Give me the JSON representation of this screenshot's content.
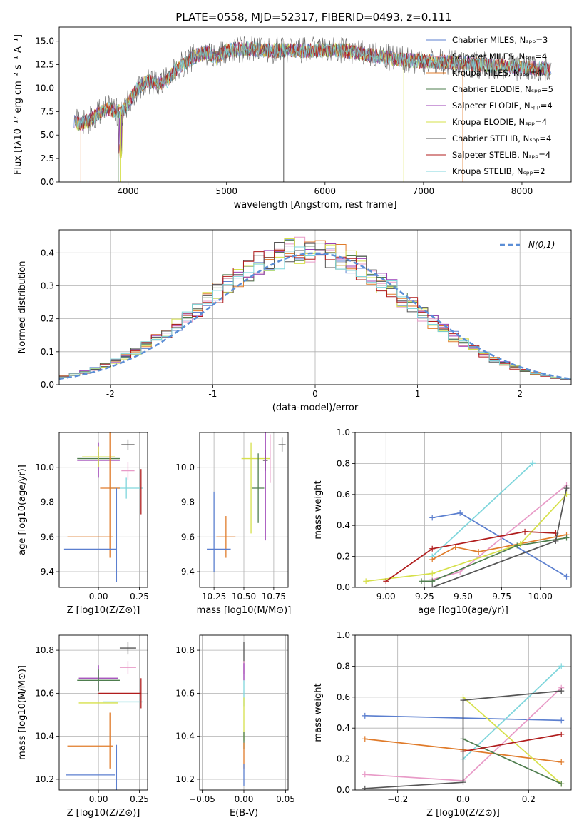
{
  "figure": {
    "title": "PLATE=0558, MJD=52317, FIBERID=0493, z=0.111"
  },
  "chart_data": [
    {
      "id": "spectrum",
      "type": "line",
      "xlabel": "wavelength [Angstrom, rest frame]",
      "ylabel": "Flux [fλ10⁻¹⁷ erg cm⁻² s⁻¹ A⁻¹]",
      "xlim": [
        3300,
        8500
      ],
      "ylim": [
        0,
        16.5
      ],
      "xticks": [
        4000,
        5000,
        6000,
        7000,
        8000
      ],
      "yticks": [
        0.0,
        2.5,
        5.0,
        7.5,
        10.0,
        12.5,
        15.0
      ],
      "ytick_labels": [
        "0.0",
        "2.5",
        "5.0",
        "7.5",
        "10.0",
        "12.5",
        "15.0"
      ],
      "grid": false,
      "legend_position": "top-right",
      "x_range_data": [
        3450,
        8300
      ],
      "series": [
        {
          "name": "Chabrier MILES, Nₛₚₚ=3",
          "color": "#5b7fcf"
        },
        {
          "name": "Salpeter MILES, Nₛₚₚ=4",
          "color": "#e89ac7"
        },
        {
          "name": "Kroupa MILES, Nₛₚₚ=4",
          "color": "#e07b2a"
        },
        {
          "name": "Chabrier ELODIE, Nₛₚₚ=5",
          "color": "#4e7d4e"
        },
        {
          "name": "Salpeter ELODIE, Nₛₚₚ=4",
          "color": "#9b3fb5"
        },
        {
          "name": "Kroupa ELODIE, Nₛₚₚ=4",
          "color": "#d6e04a"
        },
        {
          "name": "Chabrier STELIB, Nₛₚₚ=4",
          "color": "#555555"
        },
        {
          "name": "Salpeter STELIB, Nₛₚₚ=4",
          "color": "#b01c1c"
        },
        {
          "name": "Kroupa STELIB, Nₛₚₚ=2",
          "color": "#7fd6dc"
        }
      ],
      "envelope": {
        "x": [
          3450,
          3500,
          3600,
          3700,
          3800,
          3900,
          3950,
          4000,
          4100,
          4200,
          4300,
          4400,
          4500,
          4600,
          4700,
          4800,
          4900,
          5000,
          5200,
          5400,
          5600,
          5800,
          6000,
          6200,
          6400,
          6600,
          6800,
          7000,
          7200,
          7400,
          7600,
          7800,
          8000,
          8300
        ],
        "y": [
          6.5,
          6.2,
          6.5,
          7.3,
          7.8,
          7.5,
          7.5,
          8.5,
          10.0,
          10.8,
          10.5,
          10.8,
          12.2,
          12.8,
          13.5,
          13.8,
          13.2,
          14.0,
          14.2,
          14.0,
          14.0,
          14.0,
          14.1,
          14.0,
          13.6,
          13.3,
          13.0,
          12.9,
          12.8,
          12.6,
          12.5,
          12.4,
          12.2,
          12.0
        ]
      }
    },
    {
      "id": "residuals",
      "type": "histogram",
      "xlabel": "(data-model)/error",
      "ylabel": "Normed distribution",
      "xlim": [
        -2.5,
        2.5
      ],
      "ylim": [
        0,
        0.47
      ],
      "xticks": [
        -2,
        -1,
        0,
        1,
        2
      ],
      "yticks": [
        0.0,
        0.1,
        0.2,
        0.3,
        0.4
      ],
      "ytick_labels": [
        "0.0",
        "0.1",
        "0.2",
        "0.3",
        "0.4"
      ],
      "grid": true,
      "legend_position": "top-right",
      "reference_curve": {
        "name": "N(0,1)",
        "mean": 0,
        "sigma": 1,
        "color": "#5b8ed6"
      },
      "bin_width": 0.1,
      "bin_start": -2.5
    },
    {
      "id": "age_vs_z",
      "type": "errorbar",
      "xlabel": "Z [log10(Z/Z⊙)]",
      "ylabel": "age  [log10(age/yr)]",
      "xlim": [
        -0.24,
        0.3
      ],
      "ylim": [
        9.31,
        10.2
      ],
      "xticks": [
        0.0,
        0.25
      ],
      "xtick_labels": [
        "0.00",
        "0.25"
      ],
      "yticks": [
        9.4,
        9.6,
        9.8,
        10.0
      ],
      "ytick_labels": [
        "9.4",
        "9.6",
        "9.8",
        "10.0"
      ],
      "grid": true,
      "points": [
        {
          "x": 0.0,
          "y": 10.05,
          "xerr": 0.13,
          "yerr": 0.04,
          "color": "#4e7d4e"
        },
        {
          "x": 0.0,
          "y": 10.04,
          "xerr": 0.13,
          "yerr": 0.1,
          "color": "#9b3fb5"
        },
        {
          "x": 0.0,
          "y": 10.06,
          "xerr": 0.1,
          "yerr": 0.06,
          "color": "#d6e04a"
        },
        {
          "x": 0.18,
          "y": 10.13,
          "xerr": 0.04,
          "yerr": 0.03,
          "color": "#555555"
        },
        {
          "x": 0.18,
          "y": 9.98,
          "xerr": 0.04,
          "yerr": 0.05,
          "color": "#e89ac7"
        },
        {
          "x": 0.17,
          "y": 9.88,
          "xerr": 0.1,
          "yerr": 0.06,
          "color": "#7fd6dc"
        },
        {
          "x": 0.26,
          "y": 9.86,
          "xerr": 0.0,
          "yerr": 0.13,
          "color": "#b01c1c"
        },
        {
          "x": 0.07,
          "y": 9.88,
          "xerr": 0.06,
          "yerr": 0.4,
          "color": "#e07b2a"
        },
        {
          "x": -0.05,
          "y": 9.6,
          "xerr": 0.14,
          "yerr": 0.0,
          "color": "#e07b2a"
        },
        {
          "x": -0.05,
          "y": 9.53,
          "xerr": 0.16,
          "yerr": 0.0,
          "color": "#5b7fcf"
        },
        {
          "x": 0.11,
          "y": 9.61,
          "xerr": 0.0,
          "yerr": 0.27,
          "color": "#5b7fcf"
        }
      ]
    },
    {
      "id": "age_vs_mass",
      "type": "errorbar",
      "xlabel": "mass [log10(M/M⊙)]",
      "xlim": [
        10.13,
        10.87
      ],
      "ylim": [
        9.31,
        10.2
      ],
      "xticks": [
        10.25,
        10.5,
        10.75
      ],
      "xtick_labels": [
        "10.25",
        "10.50",
        "10.75"
      ],
      "yticks": [
        9.4,
        9.6,
        9.8,
        10.0
      ],
      "ytick_labels": [
        "9.4",
        "9.6",
        "9.8",
        "10.0"
      ],
      "grid": true,
      "points": [
        {
          "x": 10.6,
          "y": 10.05,
          "xerr": 0.12,
          "yerr": 0.0,
          "color": "#d6e04a"
        },
        {
          "x": 10.68,
          "y": 10.04,
          "xerr": 0.02,
          "yerr": 0.06,
          "color": "#555555"
        },
        {
          "x": 10.82,
          "y": 10.13,
          "xerr": 0.03,
          "yerr": 0.04,
          "color": "#555555"
        },
        {
          "x": 10.72,
          "y": 10.05,
          "xerr": 0.0,
          "yerr": 0.14,
          "color": "#e89ac7"
        },
        {
          "x": 10.68,
          "y": 9.92,
          "xerr": 0.0,
          "yerr": 0.34,
          "color": "#9b3fb5"
        },
        {
          "x": 10.62,
          "y": 9.88,
          "xerr": 0.05,
          "yerr": 0.2,
          "color": "#4e7d4e"
        },
        {
          "x": 10.56,
          "y": 9.88,
          "xerr": 0.0,
          "yerr": 0.26,
          "color": "#d6e04a"
        },
        {
          "x": 10.35,
          "y": 9.6,
          "xerr": 0.08,
          "yerr": 0.12,
          "color": "#e07b2a"
        },
        {
          "x": 10.29,
          "y": 9.53,
          "xerr": 0.1,
          "yerr": 0.0,
          "color": "#5b7fcf"
        },
        {
          "x": 10.25,
          "y": 9.63,
          "xerr": 0.0,
          "yerr": 0.23,
          "color": "#5b7fcf"
        }
      ]
    },
    {
      "id": "weight_vs_age",
      "type": "line",
      "xlabel": "age  [log10(age/yr)]",
      "ylabel": "mass weight",
      "xlim": [
        8.8,
        10.2
      ],
      "ylim": [
        0,
        1
      ],
      "xticks": [
        9.0,
        9.25,
        9.5,
        9.75,
        10.0
      ],
      "xtick_labels": [
        "9.00",
        "9.25",
        "9.50",
        "9.75",
        "10.00"
      ],
      "yticks": [
        0.0,
        0.2,
        0.4,
        0.6,
        0.8,
        1.0
      ],
      "ytick_labels": [
        "0.0",
        "0.2",
        "0.4",
        "0.6",
        "0.8",
        "1.0"
      ],
      "grid": true,
      "series": [
        {
          "color": "#5b7fcf",
          "x": [
            9.3,
            9.48,
            10.17
          ],
          "y": [
            0.45,
            0.48,
            0.07
          ]
        },
        {
          "color": "#7fd6dc",
          "x": [
            9.3,
            9.95
          ],
          "y": [
            0.2,
            0.8
          ]
        },
        {
          "color": "#e89ac7",
          "x": [
            9.3,
            9.48,
            10.17
          ],
          "y": [
            0.05,
            0.1,
            0.66
          ]
        },
        {
          "color": "#e07b2a",
          "x": [
            9.3,
            9.45,
            9.6,
            10.17
          ],
          "y": [
            0.18,
            0.26,
            0.23,
            0.34
          ]
        },
        {
          "color": "#d6e04a",
          "x": [
            8.87,
            9.3,
            9.87,
            10.17
          ],
          "y": [
            0.04,
            0.09,
            0.28,
            0.6
          ]
        },
        {
          "color": "#4e7d4e",
          "x": [
            9.23,
            9.3,
            9.85,
            10.17
          ],
          "y": [
            0.04,
            0.04,
            0.27,
            0.32
          ]
        },
        {
          "color": "#b01c1c",
          "x": [
            9.0,
            9.3,
            9.9,
            10.1
          ],
          "y": [
            0.04,
            0.25,
            0.36,
            0.35
          ]
        },
        {
          "color": "#555555",
          "x": [
            9.3,
            10.1,
            10.17
          ],
          "y": [
            0.0,
            0.3,
            0.64
          ]
        }
      ]
    },
    {
      "id": "mass_vs_z",
      "type": "errorbar",
      "xlabel": "Z [log10(Z/Z⊙)]",
      "ylabel": "mass [log10(M/M⊙)]",
      "xlim": [
        -0.24,
        0.3
      ],
      "ylim": [
        10.15,
        10.87
      ],
      "xticks": [
        0.0,
        0.25
      ],
      "xtick_labels": [
        "0.00",
        "0.25"
      ],
      "yticks": [
        10.2,
        10.4,
        10.6,
        10.8
      ],
      "ytick_labels": [
        "10.2",
        "10.4",
        "10.6",
        "10.8"
      ],
      "grid": true,
      "points": [
        {
          "x": 0.0,
          "y": 10.67,
          "xerr": 0.12,
          "yerr": 0.06,
          "color": "#9b3fb5"
        },
        {
          "x": 0.0,
          "y": 10.66,
          "xerr": 0.13,
          "yerr": 0.05,
          "color": "#4e7d4e"
        },
        {
          "x": 0.18,
          "y": 10.81,
          "xerr": 0.05,
          "yerr": 0.03,
          "color": "#555555"
        },
        {
          "x": 0.18,
          "y": 10.72,
          "xerr": 0.05,
          "yerr": 0.03,
          "color": "#e89ac7"
        },
        {
          "x": 0.15,
          "y": 10.56,
          "xerr": 0.12,
          "yerr": 0.0,
          "color": "#7fd6dc"
        },
        {
          "x": 0.13,
          "y": 10.6,
          "xerr": 0.13,
          "yerr": 0.0,
          "color": "#b01c1c"
        },
        {
          "x": 0.26,
          "y": 10.6,
          "xerr": 0.0,
          "yerr": 0.07,
          "color": "#b01c1c"
        },
        {
          "x": 0.0,
          "y": 10.555,
          "xerr": 0.12,
          "yerr": 0.0,
          "color": "#d6e04a"
        },
        {
          "x": 0.07,
          "y": 10.38,
          "xerr": 0.0,
          "yerr": 0.13,
          "color": "#e07b2a"
        },
        {
          "x": -0.05,
          "y": 10.355,
          "xerr": 0.14,
          "yerr": 0.0,
          "color": "#e07b2a"
        },
        {
          "x": 0.11,
          "y": 10.22,
          "xerr": 0.0,
          "yerr": 0.14,
          "color": "#5b7fcf"
        },
        {
          "x": -0.05,
          "y": 10.22,
          "xerr": 0.15,
          "yerr": 0.0,
          "color": "#5b7fcf"
        }
      ]
    },
    {
      "id": "mass_vs_ebv",
      "type": "errorbar",
      "xlabel": "E(B-V)",
      "xlim": [
        -0.053,
        0.053
      ],
      "ylim": [
        10.15,
        10.87
      ],
      "xticks": [
        -0.05,
        0.0,
        0.05
      ],
      "xtick_labels": [
        "−0.05",
        "0.00",
        "0.05"
      ],
      "yticks": [
        10.2,
        10.4,
        10.6,
        10.8
      ],
      "ytick_labels": [
        "10.2",
        "10.4",
        "10.6",
        "10.8"
      ],
      "grid": true,
      "points": [
        {
          "x": 0.0,
          "y": 10.79,
          "yerr": 0.05,
          "color": "#555555"
        },
        {
          "x": 0.0,
          "y": 10.72,
          "yerr": 0.03,
          "color": "#e89ac7"
        },
        {
          "x": 0.0,
          "y": 10.7,
          "yerr": 0.04,
          "color": "#9b3fb5"
        },
        {
          "x": 0.0,
          "y": 10.6,
          "yerr": 0.06,
          "color": "#7fd6dc"
        },
        {
          "x": 0.0,
          "y": 10.48,
          "yerr": 0.1,
          "color": "#d6e04a"
        },
        {
          "x": 0.0,
          "y": 10.38,
          "yerr": 0.04,
          "color": "#4e7d4e"
        },
        {
          "x": 0.0,
          "y": 10.31,
          "yerr": 0.06,
          "color": "#e07b2a"
        },
        {
          "x": 0.0,
          "y": 10.22,
          "yerr": 0.05,
          "color": "#5b7fcf"
        }
      ]
    },
    {
      "id": "weight_vs_z",
      "type": "line",
      "xlabel": "Z [log10(Z/Z⊙)]",
      "ylabel": "mass weight",
      "xlim": [
        -0.33,
        0.33
      ],
      "ylim": [
        0,
        1
      ],
      "xticks": [
        -0.2,
        0.0,
        0.2
      ],
      "xtick_labels": [
        "−0.2",
        "0.0",
        "0.2"
      ],
      "yticks": [
        0.0,
        0.2,
        0.4,
        0.6,
        0.8,
        1.0
      ],
      "ytick_labels": [
        "0.0",
        "0.2",
        "0.4",
        "0.6",
        "0.8",
        "1.0"
      ],
      "grid": true,
      "series": [
        {
          "color": "#5b7fcf",
          "x": [
            -0.3,
            0.3
          ],
          "y": [
            0.48,
            0.45
          ]
        },
        {
          "color": "#7fd6dc",
          "x": [
            0.0,
            0.3
          ],
          "y": [
            0.2,
            0.8
          ]
        },
        {
          "color": "#e89ac7",
          "x": [
            -0.3,
            0.0,
            0.3
          ],
          "y": [
            0.1,
            0.06,
            0.66
          ]
        },
        {
          "color": "#e07b2a",
          "x": [
            -0.3,
            0.0,
            0.3
          ],
          "y": [
            0.33,
            0.26,
            0.18
          ]
        },
        {
          "color": "#d6e04a",
          "x": [
            0.0,
            0.3
          ],
          "y": [
            0.6,
            0.04
          ]
        },
        {
          "color": "#4e7d4e",
          "x": [
            0.0,
            0.3
          ],
          "y": [
            0.33,
            0.04
          ]
        },
        {
          "color": "#b01c1c",
          "x": [
            0.0,
            0.3
          ],
          "y": [
            0.25,
            0.36
          ]
        },
        {
          "color": "#555555",
          "x": [
            -0.3,
            0.0,
            0.0,
            0.3
          ],
          "y": [
            0.01,
            0.05,
            0.58,
            0.64
          ]
        }
      ]
    }
  ]
}
